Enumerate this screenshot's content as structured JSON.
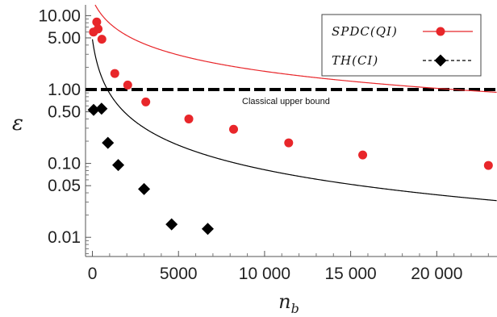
{
  "chart_data": {
    "type": "scatter",
    "xlabel": "n",
    "xlabel_subscript": "b",
    "ylabel": "ε",
    "x_range": [
      -400,
      23500
    ],
    "y_range": [
      0.0055,
      14
    ],
    "y_scale": "log",
    "x_ticks": [
      {
        "value": 0,
        "label": "0"
      },
      {
        "value": 5000,
        "label": "5000"
      },
      {
        "value": 10000,
        "label": "10 000"
      },
      {
        "value": 15000,
        "label": "15 000"
      },
      {
        "value": 20000,
        "label": "20 000"
      }
    ],
    "y_ticks": [
      {
        "value": 10,
        "label": "10.00"
      },
      {
        "value": 5,
        "label": "5.00"
      },
      {
        "value": 1,
        "label": "1.00"
      },
      {
        "value": 0.5,
        "label": "0.50"
      },
      {
        "value": 0.1,
        "label": "0.10"
      },
      {
        "value": 0.05,
        "label": "0.05"
      },
      {
        "value": 0.01,
        "label": "0.01"
      }
    ],
    "series": [
      {
        "name": "SPDC(QI)",
        "color": "#e8262a",
        "marker": "circle",
        "points": [
          [
            60,
            6.0
          ],
          [
            250,
            8.2
          ],
          [
            330,
            6.6
          ],
          [
            550,
            4.8
          ],
          [
            1300,
            1.65
          ],
          [
            2050,
            1.15
          ],
          [
            3100,
            0.68
          ],
          [
            5600,
            0.4
          ],
          [
            8200,
            0.29
          ],
          [
            11400,
            0.19
          ],
          [
            15700,
            0.13
          ],
          [
            23000,
            0.094
          ]
        ],
        "fit": {
          "a": 11.7,
          "b": -0.8,
          "c": 640
        }
      },
      {
        "name": "TH(CI)",
        "color": "#000000",
        "marker": "diamond",
        "points": [
          [
            70,
            0.53
          ],
          [
            530,
            0.55
          ],
          [
            900,
            0.19
          ],
          [
            1500,
            0.095
          ],
          [
            3000,
            0.045
          ],
          [
            4600,
            0.015
          ],
          [
            6700,
            0.013
          ]
        ],
        "fit": {
          "a": 1.2,
          "b": -1.15,
          "c": 300
        }
      }
    ],
    "reference_line": {
      "y": 1.0,
      "label": "Classical upper bound",
      "color": "#000000"
    },
    "legend": {
      "position": "top-right",
      "entries": [
        "SPDC(QI)",
        "TH(CI)"
      ]
    },
    "grid": false
  }
}
